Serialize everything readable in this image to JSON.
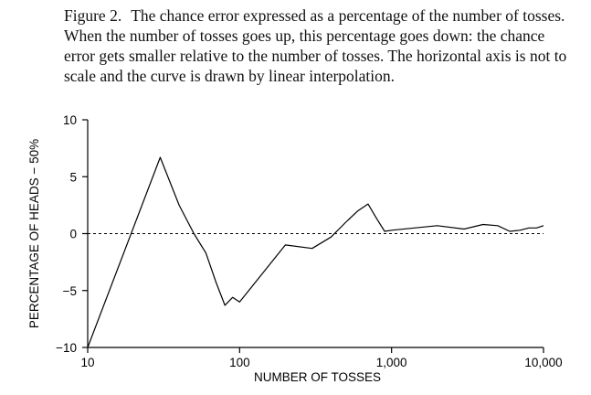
{
  "caption": {
    "figure_label": "Figure 2.",
    "text": "The chance error expressed as a percentage of the number of tosses. When the number of tosses goes up, this percentage goes down: the chance error gets smaller relative to the number of tosses. The horizontal axis is not to scale and the curve is drawn by linear interpolation."
  },
  "chart_data": {
    "type": "line",
    "title": "",
    "xlabel": "NUMBER OF TOSSES",
    "ylabel": "PERCENTAGE OF HEADS − 50%",
    "x_scale": "log",
    "xlim": [
      10,
      10000
    ],
    "ylim": [
      -10,
      10
    ],
    "x_ticks": [
      10,
      100,
      1000,
      10000
    ],
    "x_tick_labels": [
      "10",
      "100",
      "1,000",
      "10,000"
    ],
    "y_ticks": [
      10,
      5,
      0,
      -5,
      -10
    ],
    "y_tick_labels": [
      "10",
      "5",
      "0",
      "−5",
      "−10"
    ],
    "reference_line": {
      "y": 0,
      "style": "dashed"
    },
    "grid": false,
    "legend": "none",
    "series": [
      {
        "x": [
          10,
          30,
          40,
          50,
          60,
          70,
          80,
          90,
          100,
          200,
          300,
          400,
          500,
          600,
          700,
          800,
          900,
          1000,
          2000,
          3000,
          4000,
          5000,
          6000,
          7000,
          8000,
          9000,
          10000
        ],
        "y": [
          -10,
          6.7,
          2.5,
          0,
          -1.7,
          -4.3,
          -6.3,
          -5.6,
          -6.0,
          -1.0,
          -1.3,
          -0.3,
          1.0,
          2.0,
          2.6,
          1.3,
          0.2,
          0.3,
          0.7,
          0.4,
          0.8,
          0.7,
          0.2,
          0.3,
          0.5,
          0.5,
          0.7
        ]
      }
    ]
  }
}
